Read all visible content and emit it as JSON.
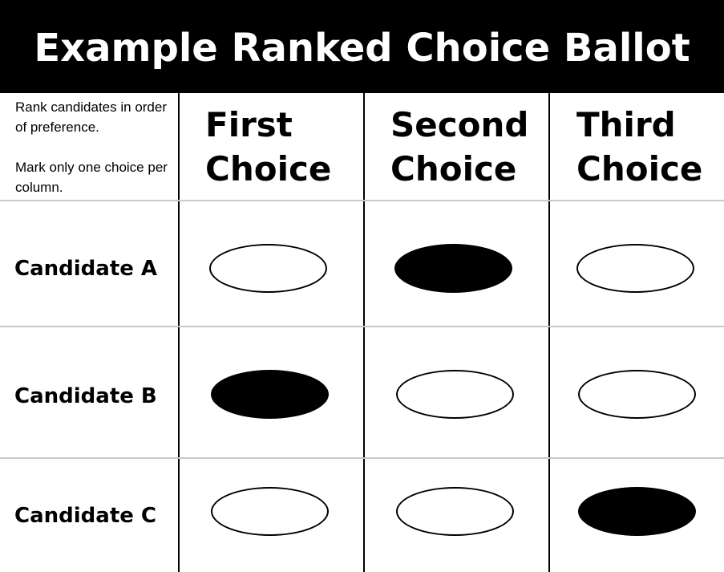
{
  "title": "Example Ranked Choice Ballot",
  "instructions": {
    "line1": "Rank candidates in order of preference.",
    "line2": "Mark only one choice per column."
  },
  "columns": [
    {
      "word1": "First",
      "word2": "Choice"
    },
    {
      "word1": "Second",
      "word2": "Choice"
    },
    {
      "word1": "Third",
      "word2": "Choice"
    }
  ],
  "candidates": [
    {
      "name": "Candidate A",
      "marks": [
        false,
        true,
        false
      ]
    },
    {
      "name": "Candidate B",
      "marks": [
        true,
        false,
        false
      ]
    },
    {
      "name": "Candidate C",
      "marks": [
        false,
        false,
        true
      ]
    }
  ],
  "colors": {
    "header_bg": "#000000",
    "header_text": "#ffffff",
    "grid_vertical": "#000000",
    "grid_horizontal": "#c8c8c8",
    "mark_filled": "#000000"
  }
}
